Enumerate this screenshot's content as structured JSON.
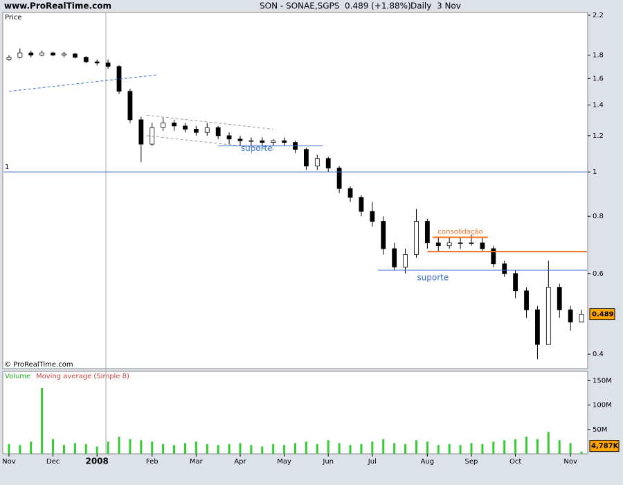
{
  "header": {
    "site": "www.ProRealTime.com",
    "symbol": "SON - SONAE,SGPS",
    "quote": "0.489 (+1.88%)",
    "period": "Daily  3 Nov"
  },
  "chart_data": [
    {
      "type": "candlestick",
      "title": "Price",
      "copyright": "© ProRealTime.com",
      "log_scale": true,
      "categories": [
        "Nov",
        null,
        null,
        null,
        "Dec",
        null,
        null,
        null,
        "2008",
        null,
        null,
        null,
        null,
        "Feb",
        null,
        null,
        null,
        "Mar",
        null,
        null,
        null,
        "Apr",
        null,
        null,
        null,
        "May",
        null,
        null,
        null,
        "Jun",
        null,
        null,
        null,
        "Jul",
        null,
        null,
        null,
        null,
        "Aug",
        null,
        null,
        null,
        "Sep",
        null,
        null,
        null,
        "Oct",
        null,
        null,
        null,
        null,
        "Nov",
        null
      ],
      "open": [
        1.76,
        1.78,
        1.82,
        1.8,
        1.82,
        1.8,
        1.81,
        1.78,
        1.74,
        1.73,
        1.7,
        1.5,
        1.3,
        1.15,
        1.25,
        1.28,
        1.26,
        1.24,
        1.22,
        1.25,
        1.2,
        1.18,
        1.17,
        1.17,
        1.16,
        1.17,
        1.16,
        1.12,
        1.03,
        1.07,
        1.02,
        0.92,
        0.88,
        0.82,
        0.78,
        0.68,
        0.62,
        0.66,
        0.78,
        0.7,
        0.69,
        0.7,
        0.7,
        0.7,
        0.68,
        0.63,
        0.6,
        0.55,
        0.5,
        0.42,
        0.56,
        0.5,
        0.47
      ],
      "high": [
        1.8,
        1.86,
        1.84,
        1.84,
        1.83,
        1.83,
        1.82,
        1.79,
        1.76,
        1.76,
        1.71,
        1.52,
        1.32,
        1.28,
        1.32,
        1.3,
        1.28,
        1.26,
        1.28,
        1.26,
        1.22,
        1.2,
        1.19,
        1.19,
        1.18,
        1.19,
        1.17,
        1.13,
        1.09,
        1.08,
        1.03,
        0.93,
        0.89,
        0.86,
        0.8,
        0.7,
        0.68,
        0.83,
        0.79,
        0.72,
        0.72,
        0.72,
        0.73,
        0.72,
        0.69,
        0.64,
        0.61,
        0.56,
        0.51,
        0.64,
        0.57,
        0.51,
        0.5
      ],
      "low": [
        1.75,
        1.77,
        1.78,
        1.79,
        1.79,
        1.78,
        1.77,
        1.73,
        1.71,
        1.68,
        1.48,
        1.28,
        1.05,
        1.14,
        1.23,
        1.23,
        1.22,
        1.2,
        1.2,
        1.18,
        1.15,
        1.14,
        1.14,
        1.14,
        1.14,
        1.14,
        1.1,
        1.01,
        1.01,
        1.0,
        0.9,
        0.86,
        0.8,
        0.76,
        0.66,
        0.61,
        0.6,
        0.65,
        0.68,
        0.67,
        0.68,
        0.68,
        0.69,
        0.67,
        0.62,
        0.59,
        0.53,
        0.48,
        0.39,
        0.42,
        0.48,
        0.45,
        0.47
      ],
      "close": [
        1.78,
        1.82,
        1.8,
        1.82,
        1.8,
        1.81,
        1.78,
        1.74,
        1.73,
        1.7,
        1.5,
        1.3,
        1.15,
        1.25,
        1.28,
        1.26,
        1.24,
        1.22,
        1.25,
        1.2,
        1.18,
        1.17,
        1.17,
        1.16,
        1.17,
        1.16,
        1.12,
        1.03,
        1.07,
        1.02,
        0.92,
        0.88,
        0.82,
        0.78,
        0.68,
        0.62,
        0.66,
        0.78,
        0.7,
        0.69,
        0.7,
        0.7,
        0.7,
        0.68,
        0.63,
        0.6,
        0.55,
        0.5,
        0.42,
        0.56,
        0.5,
        0.47,
        0.489
      ],
      "last_label": "0.489",
      "ylim": [
        0.372,
        2.23
      ],
      "yticks": [
        0.4,
        0.6,
        0.8,
        1,
        1.2,
        1.4,
        1.6,
        1.8,
        2.2
      ],
      "lines": [
        {
          "color": "#3a6fd8",
          "dash": true,
          "x": [
            0,
            13.5
          ],
          "y": [
            1.5,
            1.63
          ]
        },
        {
          "color": "#999999",
          "dash": true,
          "x": [
            12.5,
            24
          ],
          "y": [
            1.33,
            1.24
          ]
        },
        {
          "color": "#999999",
          "dash": true,
          "x": [
            12.5,
            24
          ],
          "y": [
            1.2,
            1.12
          ]
        },
        {
          "color": "#3a6fd8",
          "dash": false,
          "x": [
            19,
            28.5
          ],
          "y": [
            1.14,
            1.14
          ]
        },
        {
          "color": "#3a6fd8",
          "dash": false,
          "x": [
            -0.5,
            52.5
          ],
          "y": [
            1,
            1
          ],
          "label": "1"
        },
        {
          "color": "#f07020",
          "dash": false,
          "x": [
            38.5,
            43.5
          ],
          "y": [
            0.72,
            0.72
          ]
        },
        {
          "color": "#f07020",
          "dash": false,
          "x": [
            38,
            52.5
          ],
          "y": [
            0.67,
            0.67
          ]
        },
        {
          "color": "#3a6fd8",
          "dash": false,
          "x": [
            33.5,
            52.5
          ],
          "y": [
            0.61,
            0.61
          ]
        }
      ],
      "annotations": [
        {
          "text": "suporte",
          "color": "#3a6fd8",
          "x": 22.5,
          "y": 1.125
        },
        {
          "text": "consolidação",
          "color": "#f07020",
          "x": 41,
          "y": 0.74
        },
        {
          "text": "suporte",
          "color": "#3a6fd8",
          "x": 38.5,
          "y": 0.587
        }
      ]
    },
    {
      "type": "bar",
      "title": "Volume",
      "subtitle": "Moving average (Simple 8)",
      "color": "#33cc33",
      "values": [
        20,
        18,
        25,
        135,
        30,
        18,
        22,
        20,
        15,
        25,
        35,
        30,
        28,
        25,
        20,
        18,
        22,
        25,
        20,
        18,
        20,
        22,
        18,
        15,
        20,
        18,
        22,
        25,
        20,
        28,
        22,
        18,
        20,
        25,
        30,
        22,
        20,
        28,
        25,
        18,
        20,
        18,
        22,
        20,
        25,
        28,
        30,
        35,
        30,
        45,
        28,
        22,
        4.787
      ],
      "last_label": "4,787K",
      "ylim": [
        0,
        169
      ],
      "yticks": [
        {
          "value": 50,
          "label": "50M"
        },
        {
          "value": 100,
          "label": "100M"
        },
        {
          "value": 150,
          "label": "150M"
        }
      ]
    }
  ]
}
